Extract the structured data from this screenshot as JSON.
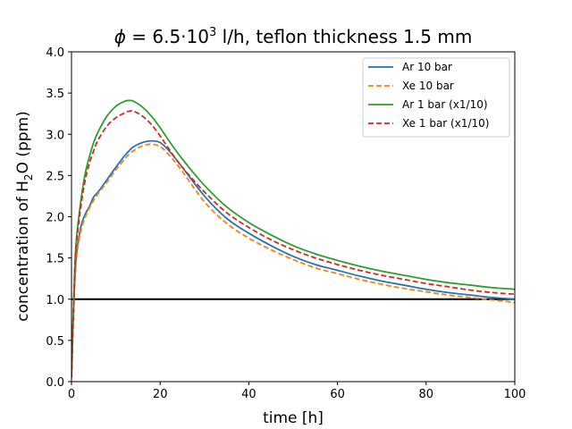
{
  "chart_data": {
    "type": "line",
    "title_var": "ϕ",
    "title_eq": " = 6.5·10",
    "title_exp": "3",
    "title_rest": " l/h, teflon thickness 1.5 mm",
    "xlabel": "time [h]",
    "ylabel_main": "concentration of H",
    "ylabel_sub": "2",
    "ylabel_rest": "O (ppm)",
    "xlim": [
      0,
      100
    ],
    "ylim": [
      0,
      4
    ],
    "xticks": [
      0,
      20,
      40,
      60,
      80,
      100
    ],
    "yticks": [
      0.0,
      0.5,
      1.0,
      1.5,
      2.0,
      2.5,
      3.0,
      3.5,
      4.0
    ],
    "ytick_labels": [
      "0.0",
      "0.5",
      "1.0",
      "1.5",
      "2.0",
      "2.5",
      "3.0",
      "3.5",
      "4.0"
    ],
    "grid": false,
    "legend_position": "top-right",
    "reference_line": {
      "y": 1.0,
      "color": "#000000"
    },
    "x": [
      0,
      0.5,
      1,
      2,
      3,
      4,
      5,
      6,
      8,
      10,
      12,
      13,
      14,
      16,
      18,
      20,
      22,
      25,
      30,
      35,
      40,
      45,
      50,
      55,
      60,
      65,
      70,
      75,
      80,
      85,
      90,
      95,
      100
    ],
    "series": [
      {
        "name": "Ar 10 bar",
        "color": "#1f77b4",
        "dash": "solid",
        "values": [
          0.05,
          0.9,
          1.45,
          1.85,
          2.02,
          2.12,
          2.24,
          2.3,
          2.45,
          2.6,
          2.74,
          2.8,
          2.85,
          2.9,
          2.92,
          2.9,
          2.8,
          2.6,
          2.25,
          1.98,
          1.8,
          1.65,
          1.52,
          1.42,
          1.35,
          1.28,
          1.22,
          1.17,
          1.12,
          1.08,
          1.05,
          1.02,
          1.0
        ]
      },
      {
        "name": "Xe 10 bar",
        "color": "#ff7f0e",
        "dash": "dashed",
        "values": [
          0.05,
          0.9,
          1.45,
          1.8,
          1.98,
          2.1,
          2.2,
          2.28,
          2.42,
          2.57,
          2.7,
          2.76,
          2.8,
          2.86,
          2.88,
          2.85,
          2.75,
          2.55,
          2.18,
          1.92,
          1.74,
          1.6,
          1.48,
          1.38,
          1.31,
          1.24,
          1.18,
          1.13,
          1.09,
          1.05,
          1.02,
          0.99,
          0.96
        ]
      },
      {
        "name": "Ar 1 bar (x1/10)",
        "color": "#2ca02c",
        "dash": "solid",
        "values": [
          0.05,
          1.0,
          1.65,
          2.15,
          2.5,
          2.72,
          2.9,
          3.03,
          3.22,
          3.34,
          3.4,
          3.41,
          3.4,
          3.33,
          3.22,
          3.08,
          2.92,
          2.7,
          2.38,
          2.12,
          1.93,
          1.78,
          1.65,
          1.55,
          1.47,
          1.4,
          1.34,
          1.29,
          1.24,
          1.2,
          1.17,
          1.14,
          1.12
        ]
      },
      {
        "name": "Xe 1 bar (x1/10)",
        "color": "#d62728",
        "dash": "dashed",
        "values": [
          0.05,
          0.98,
          1.6,
          2.08,
          2.42,
          2.64,
          2.8,
          2.93,
          3.1,
          3.2,
          3.26,
          3.28,
          3.28,
          3.22,
          3.12,
          2.98,
          2.82,
          2.6,
          2.3,
          2.05,
          1.87,
          1.72,
          1.6,
          1.5,
          1.42,
          1.35,
          1.29,
          1.24,
          1.19,
          1.15,
          1.11,
          1.08,
          1.06
        ]
      }
    ]
  }
}
